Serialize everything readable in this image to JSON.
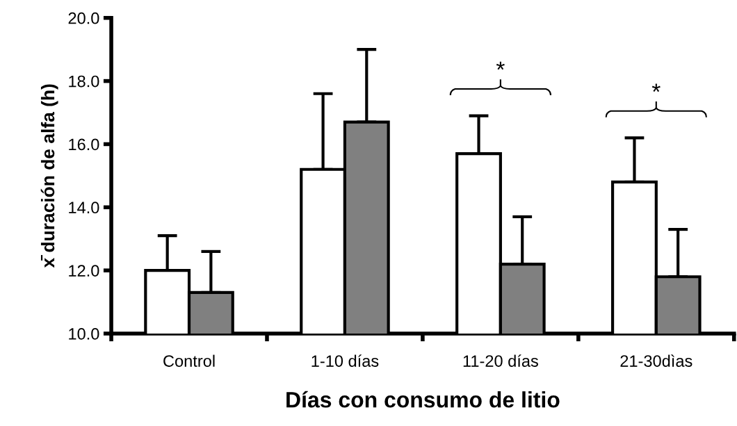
{
  "chart_data": {
    "type": "bar",
    "xlabel": "Días con consumo de litio",
    "ylabel": "x̄ duración de alfa (h)",
    "categories": [
      "Control",
      "1-10 días",
      "11-20 días",
      "21-30dìas"
    ],
    "series": [
      {
        "color": "#ffffff",
        "values": [
          12.0,
          15.2,
          15.7,
          14.8
        ],
        "errors": [
          [
            12.0,
            13.1
          ],
          [
            15.2,
            17.6
          ],
          [
            15.7,
            16.9
          ],
          [
            14.8,
            16.2
          ]
        ]
      },
      {
        "color": "#808080",
        "values": [
          11.3,
          16.7,
          12.2,
          11.8
        ],
        "errors": [
          [
            11.3,
            12.6
          ],
          [
            16.7,
            19.0
          ],
          [
            12.2,
            13.7
          ],
          [
            11.8,
            13.3
          ]
        ]
      }
    ],
    "ylim": [
      10,
      20
    ],
    "yticks": [
      {
        "value": 10,
        "label": "10.0"
      },
      {
        "value": 12,
        "label": "12.0"
      },
      {
        "value": 14,
        "label": "14.0"
      },
      {
        "value": 16,
        "label": "16.0"
      },
      {
        "value": 18,
        "label": "18.0"
      },
      {
        "value": 20,
        "label": "20.0"
      }
    ],
    "grid": false,
    "legend": false,
    "annotations": [
      "*",
      "*"
    ]
  }
}
